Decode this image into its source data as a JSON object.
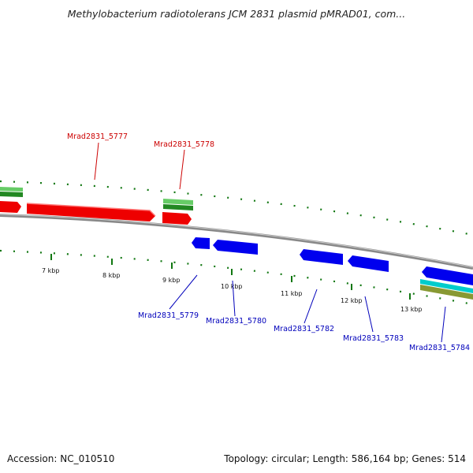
{
  "header": {
    "title": "Methylobacterium radiotolerans JCM 2831 plasmid pMRAD01, com..."
  },
  "footer": {
    "accession": "Accession: NC_010510",
    "summary": "Topology: circular; Length: 586,164 bp; Genes: 514"
  },
  "map": {
    "ticks": [
      "7 kbp",
      "8 kbp",
      "9 kbp",
      "10 kbp",
      "11 kbp",
      "12 kbp",
      "13 kbp"
    ],
    "gene_labels_forward": [
      "Mrad2831_5777",
      "Mrad2831_5778"
    ],
    "gene_labels_reverse": [
      "Mrad2831_5779",
      "Mrad2831_5780",
      "Mrad2831_5782",
      "Mrad2831_5783",
      "Mrad2831_5784"
    ]
  },
  "colors": {
    "forward_cds": "#ee0000",
    "reverse_cds": "#0000ee",
    "forward_label": "#cc0000",
    "reverse_label": "#0000bb",
    "go_track": "#33aa33",
    "cog_track_cyan": "#00cccc",
    "cog_track_olive": "#889933",
    "backbone": "#888888",
    "dot_track": "#117711"
  }
}
